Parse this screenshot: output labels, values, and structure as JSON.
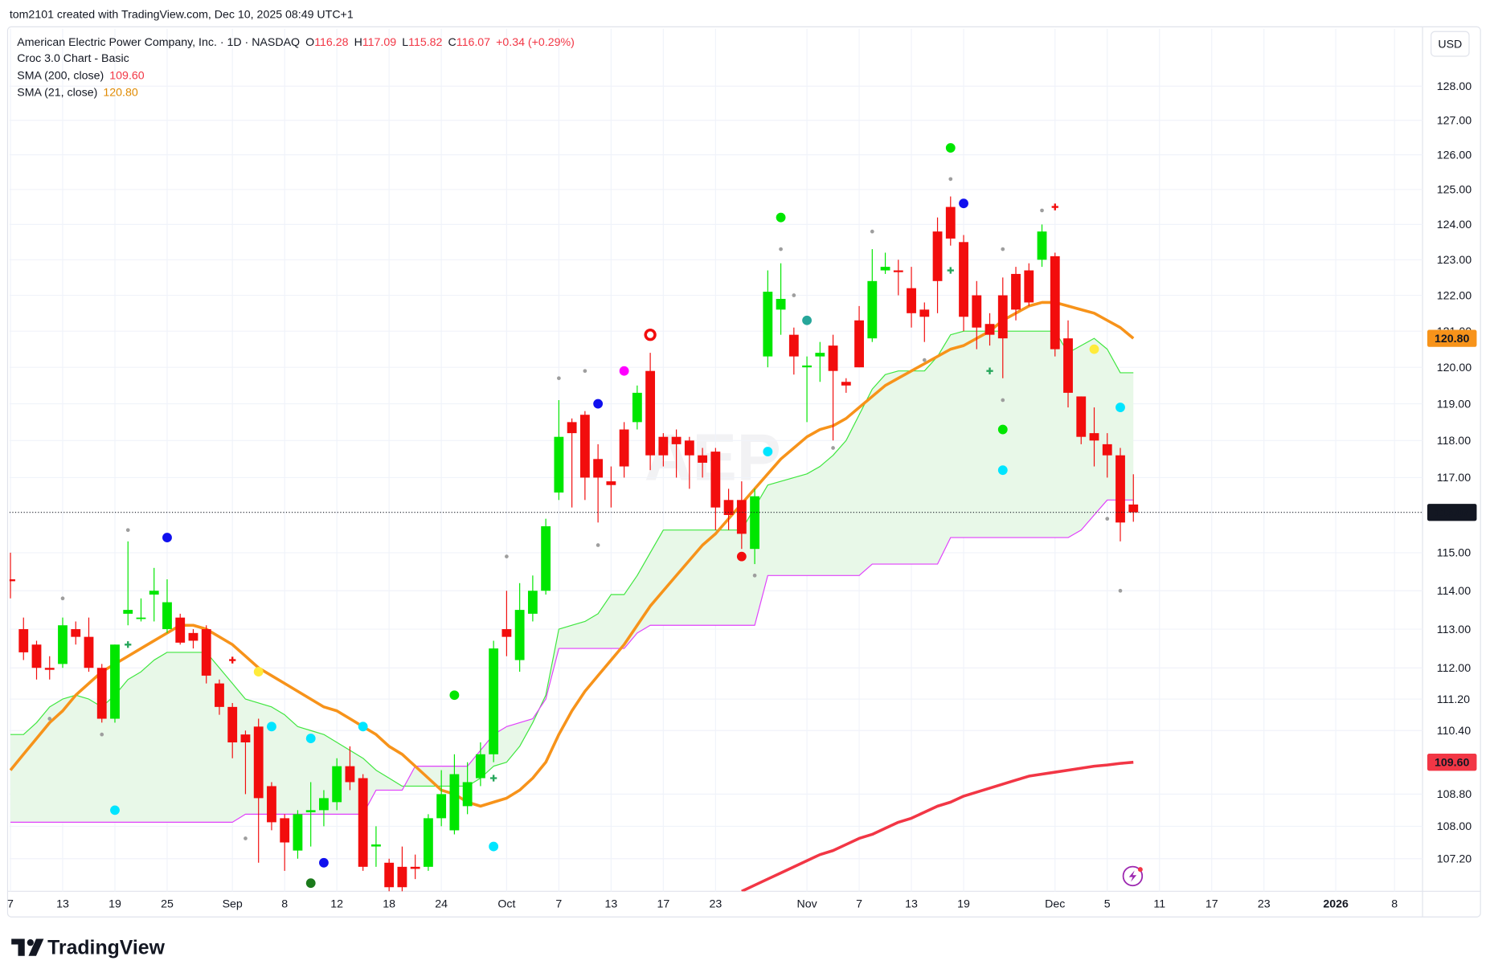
{
  "header": {
    "attribution": "tom2101 created with TradingView.com, Dec 10, 2025 08:49 UTC+1",
    "symbol": "American Electric Power Company, Inc. · 1D · NASDAQ",
    "ohlc_keys": [
      "O",
      "H",
      "L",
      "C"
    ],
    "change": "+0.34 (+0.29%)",
    "indicator": "Croc 3.0 Chart - Basic",
    "currency": "USD",
    "watermark": "AEP",
    "logo": "TradingView"
  },
  "chart_data": {
    "type": "candlestick",
    "log_scale": true,
    "grid": true,
    "xlim": [
      0,
      108
    ],
    "ylim": [
      106.4,
      129.7
    ],
    "xticks": [
      {
        "value": 0,
        "label": "7"
      },
      {
        "value": 4,
        "label": "13"
      },
      {
        "value": 8,
        "label": "19"
      },
      {
        "value": 12,
        "label": "25"
      },
      {
        "value": 17,
        "label": "Sep"
      },
      {
        "value": 21,
        "label": "8"
      },
      {
        "value": 25,
        "label": "12"
      },
      {
        "value": 29,
        "label": "18"
      },
      {
        "value": 33,
        "label": "24"
      },
      {
        "value": 38,
        "label": "Oct"
      },
      {
        "value": 42,
        "label": "7"
      },
      {
        "value": 46,
        "label": "13"
      },
      {
        "value": 50,
        "label": "17"
      },
      {
        "value": 54,
        "label": "23"
      },
      {
        "value": 61,
        "label": "Nov"
      },
      {
        "value": 65,
        "label": "7"
      },
      {
        "value": 69,
        "label": "13"
      },
      {
        "value": 73,
        "label": "19"
      },
      {
        "value": 80,
        "label": "Dec"
      },
      {
        "value": 84,
        "label": "5"
      },
      {
        "value": 88,
        "label": "11"
      },
      {
        "value": 92,
        "label": "17"
      },
      {
        "value": 96,
        "label": "23"
      },
      {
        "value": 101.5,
        "label": "2026"
      },
      {
        "value": 106,
        "label": "8"
      }
    ],
    "yticks": [
      {
        "value": 128,
        "label": "128.00"
      },
      {
        "value": 127,
        "label": "127.00"
      },
      {
        "value": 126,
        "label": "126.00"
      },
      {
        "value": 125,
        "label": "125.00"
      },
      {
        "value": 124,
        "label": "124.00"
      },
      {
        "value": 123,
        "label": "123.00"
      },
      {
        "value": 122,
        "label": "122.00"
      },
      {
        "value": 121,
        "label": "121.00"
      },
      {
        "value": 120,
        "label": "120.00"
      },
      {
        "value": 119,
        "label": "119.00"
      },
      {
        "value": 118,
        "label": "118.00"
      },
      {
        "value": 117,
        "label": "117.00"
      },
      {
        "value": 115,
        "label": "115.00"
      },
      {
        "value": 114,
        "label": "114.00"
      },
      {
        "value": 113,
        "label": "113.00"
      },
      {
        "value": 112,
        "label": "112.00"
      },
      {
        "value": 111.2,
        "label": "111.20"
      },
      {
        "value": 110.4,
        "label": "110.40"
      },
      {
        "value": 108.8,
        "label": "108.80"
      },
      {
        "value": 108,
        "label": "108.00"
      },
      {
        "value": 107.2,
        "label": "107.20"
      }
    ],
    "up_color": "#00e600",
    "down_color": "#f20d0d",
    "open": [
      114.3,
      113.0,
      112.6,
      112.0,
      112.1,
      113.0,
      112.8,
      112.0,
      110.7,
      113.4,
      113.3,
      113.9,
      113.0,
      113.3,
      112.9,
      113.0,
      111.6,
      111.0,
      110.3,
      110.5,
      109.0,
      108.2,
      107.4,
      108.35,
      108.4,
      108.6,
      109.5,
      109.2,
      107.5,
      107.1,
      107.0,
      107.0,
      107.0,
      108.2,
      107.9,
      108.5,
      109.2,
      109.8,
      113.0,
      112.2,
      113.4,
      114.0,
      116.6,
      118.5,
      118.7,
      117.5,
      116.9,
      118.3,
      118.5,
      119.9,
      118.1,
      118.1,
      118.0,
      117.6,
      117.7,
      116.4,
      116.4,
      115.1,
      120.3,
      121.6,
      120.9,
      120.0,
      120.3,
      120.6,
      119.6,
      121.3,
      120.8,
      122.7,
      122.7,
      122.2,
      121.6,
      123.8,
      124.5,
      123.5,
      122.0,
      121.2,
      122.0,
      122.6,
      122.7,
      123.0,
      123.1,
      120.8,
      119.2,
      118.2,
      117.9,
      117.6,
      116.28
    ],
    "high": [
      115.0,
      113.3,
      112.7,
      112.3,
      113.3,
      113.2,
      113.3,
      112.1,
      112.6,
      115.3,
      113.8,
      114.6,
      114.3,
      113.4,
      113.0,
      113.1,
      111.7,
      111.1,
      110.4,
      110.7,
      109.1,
      108.3,
      108.4,
      109.1,
      108.9,
      109.7,
      110.0,
      109.3,
      108.0,
      107.2,
      107.5,
      107.3,
      108.3,
      109.4,
      109.8,
      109.6,
      110.1,
      112.7,
      114.0,
      114.2,
      114.4,
      115.9,
      119.1,
      118.6,
      118.8,
      117.9,
      117.3,
      118.5,
      119.5,
      120.4,
      118.2,
      118.3,
      118.1,
      117.8,
      117.8,
      116.7,
      116.9,
      116.7,
      122.7,
      122.9,
      121.1,
      120.3,
      120.7,
      120.9,
      119.7,
      121.7,
      123.3,
      123.2,
      123.0,
      122.8,
      121.8,
      124.2,
      124.8,
      123.7,
      122.4,
      121.5,
      122.5,
      122.8,
      122.9,
      124.0,
      123.2,
      121.3,
      119.2,
      118.9,
      118.2,
      117.8,
      117.09
    ],
    "low": [
      113.8,
      112.2,
      111.7,
      111.7,
      112.0,
      112.6,
      111.9,
      110.6,
      110.6,
      113.1,
      113.2,
      113.2,
      112.9,
      112.6,
      112.5,
      111.6,
      110.8,
      109.7,
      108.8,
      107.1,
      107.9,
      106.9,
      107.2,
      107.5,
      108.0,
      108.4,
      108.9,
      106.9,
      107.0,
      106.4,
      106.4,
      106.7,
      106.9,
      108.0,
      107.8,
      108.3,
      109.0,
      109.6,
      112.3,
      111.9,
      113.2,
      113.9,
      116.4,
      116.2,
      116.4,
      115.8,
      116.2,
      117.0,
      118.3,
      117.2,
      117.3,
      117.0,
      116.7,
      117.0,
      115.6,
      115.6,
      115.1,
      114.7,
      120.0,
      120.9,
      119.8,
      118.5,
      119.6,
      118.0,
      119.3,
      120.0,
      120.7,
      122.6,
      122.0,
      121.1,
      120.7,
      121.5,
      123.4,
      121.0,
      120.5,
      120.6,
      119.7,
      121.3,
      121.7,
      122.8,
      120.3,
      118.9,
      117.9,
      117.3,
      117.0,
      115.3,
      115.82
    ],
    "close": [
      114.25,
      112.4,
      112.0,
      111.95,
      113.1,
      112.8,
      112.0,
      110.7,
      112.6,
      113.5,
      113.3,
      114.0,
      113.7,
      112.65,
      112.7,
      111.8,
      111.0,
      110.1,
      110.1,
      108.7,
      108.1,
      107.6,
      108.3,
      108.4,
      108.7,
      109.5,
      109.1,
      107.0,
      107.55,
      106.5,
      106.5,
      106.95,
      108.2,
      108.8,
      109.3,
      109.1,
      109.8,
      112.5,
      112.8,
      113.5,
      114.0,
      115.7,
      118.1,
      118.2,
      117.0,
      117.0,
      116.8,
      117.3,
      119.3,
      117.6,
      117.6,
      117.9,
      117.6,
      117.4,
      116.2,
      116.0,
      115.5,
      116.5,
      122.1,
      121.9,
      120.3,
      120.05,
      120.4,
      119.9,
      119.5,
      120.0,
      122.4,
      122.8,
      122.65,
      121.5,
      121.4,
      122.4,
      123.6,
      121.4,
      121.1,
      120.9,
      120.8,
      121.6,
      121.8,
      123.8,
      120.5,
      119.3,
      118.1,
      118.0,
      117.6,
      115.8,
      116.07
    ],
    "series": [
      {
        "name": "SMA (200, close)",
        "color": "#f23645",
        "value_label": "109.60",
        "values": [
          null,
          null,
          null,
          null,
          null,
          null,
          null,
          null,
          null,
          null,
          null,
          null,
          null,
          null,
          null,
          null,
          null,
          null,
          null,
          null,
          null,
          null,
          null,
          null,
          null,
          null,
          null,
          null,
          null,
          null,
          null,
          null,
          null,
          null,
          null,
          null,
          null,
          null,
          null,
          null,
          null,
          null,
          null,
          null,
          null,
          null,
          null,
          null,
          null,
          null,
          null,
          null,
          null,
          null,
          null,
          null,
          106.4,
          106.55,
          106.7,
          106.85,
          107.0,
          107.15,
          107.3,
          107.4,
          107.55,
          107.7,
          107.8,
          107.95,
          108.1,
          108.2,
          108.35,
          108.5,
          108.6,
          108.75,
          108.85,
          108.95,
          109.05,
          109.15,
          109.25,
          109.3,
          109.35,
          109.4,
          109.45,
          109.5,
          109.53,
          109.57,
          109.6
        ]
      },
      {
        "name": "SMA (21, close)",
        "color": "#f7931a",
        "value_label": "120.80",
        "values": [
          109.4,
          109.8,
          110.2,
          110.6,
          110.9,
          111.3,
          111.6,
          111.9,
          112.1,
          112.3,
          112.5,
          112.7,
          112.9,
          113.1,
          113.1,
          113.0,
          112.8,
          112.6,
          112.3,
          112.0,
          111.8,
          111.6,
          111.4,
          111.2,
          111.0,
          110.9,
          110.7,
          110.5,
          110.3,
          110.0,
          109.8,
          109.5,
          109.2,
          108.9,
          108.8,
          108.6,
          108.5,
          108.6,
          108.7,
          108.9,
          109.2,
          109.6,
          110.3,
          110.9,
          111.4,
          111.8,
          112.2,
          112.6,
          113.1,
          113.6,
          114.0,
          114.4,
          114.8,
          115.2,
          115.5,
          115.9,
          116.3,
          116.7,
          117.1,
          117.5,
          117.8,
          118.1,
          118.3,
          118.4,
          118.6,
          118.9,
          119.2,
          119.5,
          119.7,
          119.9,
          120.1,
          120.3,
          120.5,
          120.6,
          120.8,
          121.0,
          121.3,
          121.5,
          121.7,
          121.8,
          121.8,
          121.7,
          121.6,
          121.5,
          121.3,
          121.1,
          120.8
        ]
      }
    ],
    "upper_band": {
      "color": "#3ee63e",
      "values": [
        110.3,
        110.3,
        110.6,
        111.0,
        111.2,
        111.3,
        111.2,
        111.0,
        111.3,
        111.7,
        111.9,
        112.2,
        112.4,
        112.4,
        112.4,
        112.4,
        112.0,
        111.6,
        111.2,
        111.1,
        111.0,
        110.8,
        110.5,
        110.4,
        110.3,
        110.1,
        109.9,
        109.7,
        109.4,
        109.2,
        109.0,
        109.0,
        109.0,
        109.0,
        109.0,
        109.0,
        109.2,
        109.5,
        109.6,
        110.0,
        110.6,
        111.3,
        113.0,
        113.1,
        113.2,
        113.4,
        113.9,
        113.9,
        114.4,
        115.0,
        115.6,
        115.6,
        115.6,
        115.6,
        115.6,
        115.6,
        115.6,
        116.2,
        116.8,
        116.9,
        117.0,
        117.1,
        117.3,
        117.6,
        118.0,
        118.7,
        119.4,
        119.8,
        119.9,
        119.9,
        119.9,
        120.3,
        120.9,
        121.0,
        121.0,
        121.0,
        121.0,
        121.0,
        121.0,
        121.0,
        121.0,
        120.4,
        120.6,
        120.8,
        120.5,
        119.85,
        119.85
      ]
    },
    "lower_band": {
      "color": "#e040fb",
      "values": [
        108.1,
        108.1,
        108.1,
        108.1,
        108.1,
        108.1,
        108.1,
        108.1,
        108.1,
        108.1,
        108.1,
        108.1,
        108.1,
        108.1,
        108.1,
        108.1,
        108.1,
        108.1,
        108.3,
        108.3,
        108.3,
        108.3,
        108.3,
        108.3,
        108.3,
        108.3,
        108.3,
        108.3,
        108.9,
        108.9,
        108.9,
        109.5,
        109.5,
        109.5,
        109.5,
        109.5,
        109.9,
        110.3,
        110.5,
        110.6,
        110.7,
        111.2,
        112.5,
        112.5,
        112.5,
        112.5,
        112.5,
        112.5,
        112.9,
        113.1,
        113.1,
        113.1,
        113.1,
        113.1,
        113.1,
        113.1,
        113.1,
        113.1,
        114.4,
        114.4,
        114.4,
        114.4,
        114.4,
        114.4,
        114.4,
        114.4,
        114.7,
        114.7,
        114.7,
        114.7,
        114.7,
        114.7,
        115.4,
        115.4,
        115.4,
        115.4,
        115.4,
        115.4,
        115.4,
        115.4,
        115.4,
        115.4,
        115.6,
        116.0,
        116.4,
        116.4,
        116.4
      ]
    },
    "band_fill": "#e8f8e8",
    "markers": [
      {
        "x": 8,
        "y": 108.4,
        "color": "#00e5ff"
      },
      {
        "x": 12,
        "y": 115.4,
        "color": "#1010ee"
      },
      {
        "x": 9,
        "y": 115.6,
        "color": "#9e9e9e"
      },
      {
        "x": 4,
        "y": 113.8,
        "color": "#9e9e9e"
      },
      {
        "x": 3,
        "y": 110.7,
        "color": "#9e9e9e"
      },
      {
        "x": 7,
        "y": 110.3,
        "color": "#9e9e9e"
      },
      {
        "x": 9,
        "y": 112.6,
        "color": "#26a65b",
        "shape": "cross"
      },
      {
        "x": 17,
        "y": 112.2,
        "color": "#f20d0d",
        "shape": "cross"
      },
      {
        "x": 19,
        "y": 111.9,
        "color": "#ffeb3b"
      },
      {
        "x": 20,
        "y": 110.5,
        "color": "#00e5ff"
      },
      {
        "x": 18,
        "y": 107.7,
        "color": "#9e9e9e"
      },
      {
        "x": 23,
        "y": 110.2,
        "color": "#00e5ff"
      },
      {
        "x": 24,
        "y": 107.1,
        "color": "#1010ee"
      },
      {
        "x": 23,
        "y": 106.6,
        "color": "#1b7a1b"
      },
      {
        "x": 27,
        "y": 110.5,
        "color": "#00e5ff"
      },
      {
        "x": 34,
        "y": 111.3,
        "color": "#00e600"
      },
      {
        "x": 37,
        "y": 107.5,
        "color": "#00e5ff"
      },
      {
        "x": 37,
        "y": 109.2,
        "color": "#26a65b",
        "shape": "cross"
      },
      {
        "x": 38,
        "y": 114.9,
        "color": "#9e9e9e"
      },
      {
        "x": 42,
        "y": 119.7,
        "color": "#9e9e9e"
      },
      {
        "x": 44,
        "y": 119.9,
        "color": "#9e9e9e"
      },
      {
        "x": 45,
        "y": 119.0,
        "color": "#1010ee"
      },
      {
        "x": 45,
        "y": 115.2,
        "color": "#9e9e9e"
      },
      {
        "x": 47,
        "y": 119.9,
        "color": "#ff00ff"
      },
      {
        "x": 49,
        "y": 120.9,
        "color": "#f20d0d",
        "shape": "ring"
      },
      {
        "x": 58,
        "y": 117.7,
        "color": "#00e5ff"
      },
      {
        "x": 56,
        "y": 114.9,
        "color": "#f20d0d"
      },
      {
        "x": 57,
        "y": 114.4,
        "color": "#9e9e9e"
      },
      {
        "x": 59,
        "y": 124.2,
        "color": "#00e600"
      },
      {
        "x": 59,
        "y": 123.3,
        "color": "#9e9e9e"
      },
      {
        "x": 60,
        "y": 122.0,
        "color": "#9e9e9e"
      },
      {
        "x": 61,
        "y": 121.3,
        "color": "#26a69a"
      },
      {
        "x": 63,
        "y": 117.8,
        "color": "#9e9e9e"
      },
      {
        "x": 66,
        "y": 123.8,
        "color": "#9e9e9e"
      },
      {
        "x": 70,
        "y": 120.2,
        "color": "#9e9e9e"
      },
      {
        "x": 72,
        "y": 126.2,
        "color": "#00e600"
      },
      {
        "x": 72,
        "y": 125.3,
        "color": "#9e9e9e"
      },
      {
        "x": 73,
        "y": 124.6,
        "color": "#1010ee"
      },
      {
        "x": 72,
        "y": 122.7,
        "color": "#26a65b",
        "shape": "cross"
      },
      {
        "x": 76,
        "y": 123.3,
        "color": "#9e9e9e"
      },
      {
        "x": 76,
        "y": 118.3,
        "color": "#00e600"
      },
      {
        "x": 76,
        "y": 117.2,
        "color": "#00e5ff"
      },
      {
        "x": 76,
        "y": 119.1,
        "color": "#9e9e9e"
      },
      {
        "x": 75,
        "y": 119.9,
        "color": "#26a65b",
        "shape": "cross"
      },
      {
        "x": 79,
        "y": 124.4,
        "color": "#9e9e9e"
      },
      {
        "x": 80,
        "y": 124.5,
        "color": "#f20d0d",
        "shape": "cross"
      },
      {
        "x": 83,
        "y": 120.5,
        "color": "#ffeb3b"
      },
      {
        "x": 85,
        "y": 118.9,
        "color": "#00e5ff"
      },
      {
        "x": 84,
        "y": 115.9,
        "color": "#9e9e9e"
      },
      {
        "x": 85,
        "y": 114.0,
        "color": "#9e9e9e"
      }
    ]
  }
}
